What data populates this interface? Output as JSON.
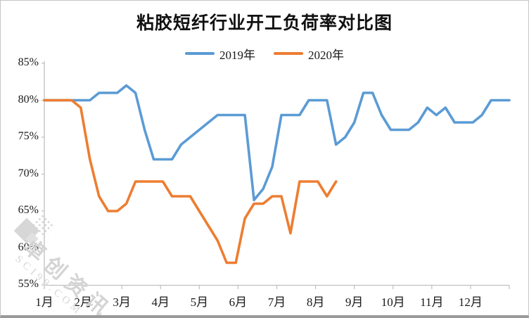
{
  "chart_data": {
    "type": "line",
    "title": "粘胶短纤行业开工负荷率对比图",
    "xlabel": "",
    "ylabel": "",
    "x_axis": {
      "tick_labels": [
        "1月",
        "2月",
        "3月",
        "4月",
        "5月",
        "6月",
        "7月",
        "8月",
        "9月",
        "10月",
        "11月",
        "12月"
      ],
      "note": "weekly data across 12 months, ticks at month boundaries"
    },
    "y_axis": {
      "tick_labels": [
        "85%",
        "80%",
        "75%",
        "70%",
        "65%",
        "60%",
        "55%"
      ],
      "min": 55,
      "max": 85,
      "unit": "%"
    },
    "grid": "off",
    "legend": {
      "position": "top-center",
      "entries": [
        {
          "label": "2019年",
          "color": "#5B9BD5"
        },
        {
          "label": "2020年",
          "color": "#ED7D31"
        }
      ]
    },
    "series": [
      {
        "name": "2019年",
        "color": "#5B9BD5",
        "interval": "weekly",
        "values": [
          80,
          80,
          80,
          80,
          80,
          80,
          81,
          81,
          81,
          82,
          81,
          76,
          72,
          72,
          72,
          74,
          75,
          76,
          77,
          78,
          78,
          78,
          78,
          66.5,
          68,
          71,
          78,
          78,
          78,
          80,
          80,
          80,
          74,
          75,
          77,
          81,
          81,
          78,
          76,
          76,
          76,
          77,
          79,
          78,
          79,
          77,
          77,
          77,
          78,
          80,
          80,
          80
        ]
      },
      {
        "name": "2020年",
        "color": "#ED7D31",
        "interval": "weekly",
        "values": [
          80,
          80,
          80,
          80,
          79,
          72,
          67,
          65,
          65,
          66,
          69,
          69,
          69,
          69,
          67,
          67,
          67,
          65,
          63,
          61,
          58,
          58,
          64,
          66,
          66,
          67,
          67,
          62,
          69,
          69,
          69,
          67,
          69
        ]
      }
    ],
    "colors": {
      "axis": "#bfbfbf",
      "text": "#1a1a1a",
      "watermark": "#d4d4d4"
    },
    "watermark": {
      "cn": "卓创资讯",
      "en": "SCI99.COM"
    }
  }
}
